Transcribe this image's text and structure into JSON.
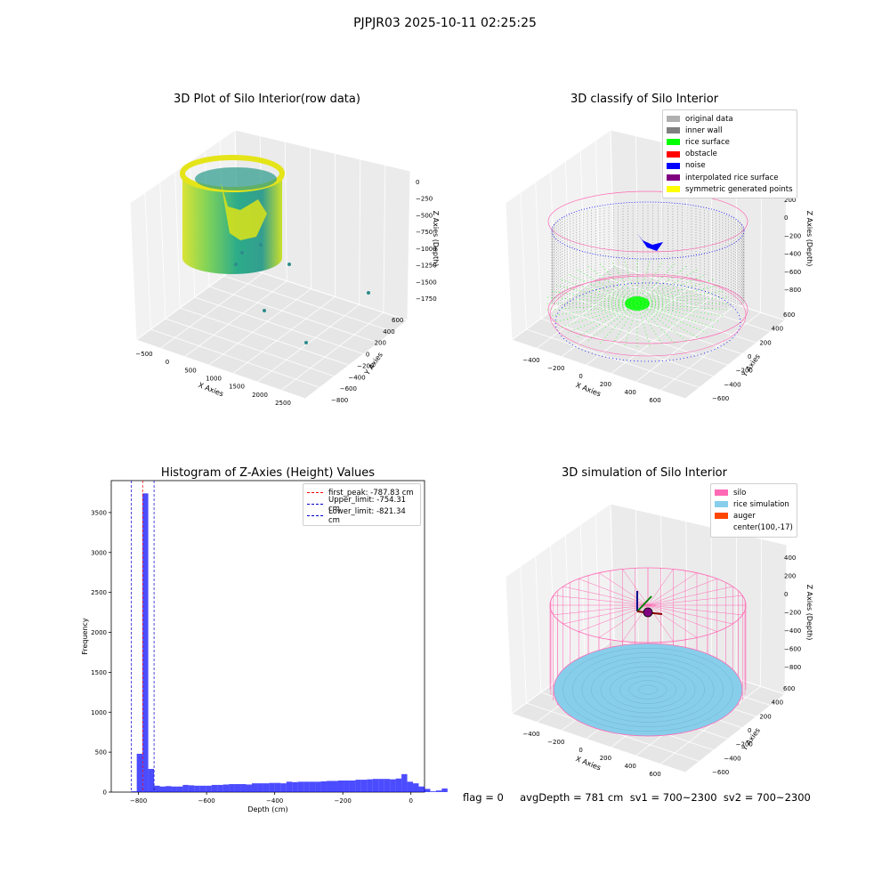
{
  "suptitle": "PJPJR03 2025-10-11 02:25:25",
  "footer": "flag = 0     avgDepth = 781 cm  sv1 = 700~2300  sv2 = 700~2300",
  "colors": {
    "original": "#b0b0b0",
    "inner_wall": "#808080",
    "rice_surface": "#00ff00",
    "obstacle": "#ff0000",
    "noise": "#0000ff",
    "interpolated": "#800080",
    "symmetric": "#ffff00",
    "silo": "#ff69b4",
    "rice_sim": "#87ceeb",
    "auger": "#ff4500",
    "hist": "#0000ff"
  },
  "chart_data": [
    {
      "type": "scatter",
      "title": "3D Plot of Silo Interior(row data)",
      "xlabel": "X Axies",
      "ylabel": "Y Axies",
      "zlabel": "Z Axies (Depth)",
      "x_ticks": [
        "−500",
        "0",
        "500",
        "1000",
        "1500",
        "2000",
        "2500"
      ],
      "y_ticks": [
        "600",
        "400",
        "200",
        "0",
        "−200",
        "−400",
        "−600",
        "−800"
      ],
      "z_ticks": [
        "0",
        "−250",
        "−500",
        "−750",
        "−1000",
        "−1250",
        "−1500",
        "−1750"
      ],
      "outliers": [
        {
          "x": 700,
          "y": 0,
          "z": -1300
        },
        {
          "x": 1250,
          "y": -400,
          "z": -1500
        },
        {
          "x": 2300,
          "y": -700,
          "z": -1600
        },
        {
          "x": 2100,
          "y": 100,
          "z": -1400
        },
        {
          "x": 1000,
          "y": 300,
          "z": -1150
        }
      ]
    },
    {
      "type": "scatter",
      "title": "3D classify of Silo Interior",
      "xlabel": "X Axies",
      "ylabel": "Y Axies",
      "zlabel": "Z Axies (Depth)",
      "x_ticks": [
        "−400",
        "−200",
        "0",
        "200",
        "400",
        "600"
      ],
      "y_ticks": [
        "600",
        "400",
        "200",
        "0",
        "−200",
        "−400",
        "−600"
      ],
      "z_ticks": [
        "200",
        "0",
        "−200",
        "−400",
        "−600",
        "−800"
      ],
      "legend": [
        {
          "label": "original data",
          "color_key": "original"
        },
        {
          "label": "inner wall",
          "color_key": "inner_wall"
        },
        {
          "label": "rice surface",
          "color_key": "rice_surface"
        },
        {
          "label": "obstacle",
          "color_key": "obstacle"
        },
        {
          "label": "noise",
          "color_key": "noise"
        },
        {
          "label": "interpolated rice surface",
          "color_key": "interpolated"
        },
        {
          "label": "symmetric generated points",
          "color_key": "symmetric"
        }
      ],
      "legend_position": "top-right"
    },
    {
      "type": "bar",
      "title": "Histogram of Z-Axies (Height) Values",
      "xlabel": "Depth (cm)",
      "ylabel": "Frequency",
      "xlim": [
        -880,
        40
      ],
      "ylim": [
        0,
        3900
      ],
      "x_ticks": [
        -800,
        -600,
        -400,
        -200,
        0
      ],
      "x_tick_labels": [
        "−800",
        "−600",
        "−400",
        "−200",
        "0"
      ],
      "y_ticks": [
        0,
        500,
        1000,
        1500,
        2000,
        2500,
        3000,
        3500
      ],
      "bin_width": 16.9,
      "bins_start": -822,
      "values": [
        10,
        480,
        3740,
        290,
        80,
        70,
        75,
        70,
        70,
        90,
        85,
        80,
        80,
        80,
        90,
        90,
        95,
        100,
        100,
        100,
        95,
        110,
        110,
        110,
        115,
        115,
        110,
        130,
        125,
        130,
        130,
        130,
        130,
        135,
        140,
        140,
        145,
        145,
        145,
        155,
        155,
        160,
        165,
        165,
        165,
        160,
        170,
        225,
        130,
        110,
        70,
        40,
        10,
        20,
        45
      ],
      "vlines": [
        {
          "label": "first_peak: -787.83 cm",
          "x": -787.83,
          "color": "#ff0000"
        },
        {
          "label": "Upper_limit: -754.31 cm",
          "x": -754.31,
          "color": "#0000cc"
        },
        {
          "label": "Lower_limit: -821.34 cm",
          "x": -821.34,
          "color": "#0000cc"
        }
      ],
      "legend_position": "top-right"
    },
    {
      "type": "scatter",
      "title": "3D simulation of Silo Interior",
      "xlabel": "X Axies",
      "ylabel": "Y Axies",
      "zlabel": "Z Axies (Depth)",
      "x_ticks": [
        "−400",
        "−200",
        "0",
        "200",
        "400",
        "600"
      ],
      "y_ticks": [
        "600",
        "400",
        "200",
        "0",
        "−200",
        "−400",
        "−600"
      ],
      "z_ticks": [
        "400",
        "200",
        "0",
        "−200",
        "−400",
        "−600",
        "−800"
      ],
      "legend": [
        {
          "label": "silo",
          "color_key": "silo"
        },
        {
          "label": "rice simulation",
          "color_key": "rice_sim"
        },
        {
          "label": "auger",
          "color_key": "auger"
        },
        {
          "label": "center(100,-17)",
          "color_key": ""
        }
      ],
      "legend_position": "top-right"
    }
  ]
}
